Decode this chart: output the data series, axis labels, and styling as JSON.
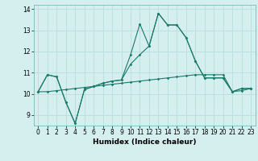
{
  "title": "",
  "xlabel": "Humidex (Indice chaleur)",
  "background_color": "#d5efef",
  "grid_color": "#b8dede",
  "line_color": "#1a7a6a",
  "xlim": [
    -0.5,
    23.5
  ],
  "ylim": [
    8.5,
    14.2
  ],
  "yticks": [
    9,
    10,
    11,
    12,
    13,
    14
  ],
  "xticks": [
    0,
    1,
    2,
    3,
    4,
    5,
    6,
    7,
    8,
    9,
    10,
    11,
    12,
    13,
    14,
    15,
    16,
    17,
    18,
    19,
    20,
    21,
    22,
    23
  ],
  "series1_x": [
    0,
    1,
    2,
    3,
    4,
    5,
    6,
    7,
    8,
    9,
    10,
    11,
    12,
    13,
    14,
    15,
    16,
    17,
    18,
    19,
    20,
    21,
    22,
    23
  ],
  "series1_y": [
    10.1,
    10.9,
    10.8,
    9.6,
    8.6,
    10.2,
    10.35,
    10.5,
    10.6,
    10.65,
    11.85,
    13.3,
    12.25,
    13.8,
    13.25,
    13.25,
    12.65,
    11.55,
    10.75,
    10.75,
    10.75,
    10.1,
    10.25,
    10.25
  ],
  "series2_x": [
    0,
    1,
    2,
    3,
    4,
    5,
    6,
    7,
    8,
    9,
    10,
    11,
    12,
    13,
    14,
    15,
    16,
    17,
    18,
    19,
    20,
    21,
    22,
    23
  ],
  "series2_y": [
    10.1,
    10.9,
    10.8,
    9.6,
    8.6,
    10.2,
    10.35,
    10.5,
    10.6,
    10.65,
    11.4,
    11.85,
    12.25,
    13.8,
    13.25,
    13.25,
    12.65,
    11.55,
    10.75,
    10.75,
    10.75,
    10.1,
    10.25,
    10.25
  ],
  "series3_x": [
    0,
    1,
    2,
    3,
    4,
    5,
    6,
    7,
    8,
    9,
    10,
    11,
    12,
    13,
    14,
    15,
    16,
    17,
    18,
    19,
    20,
    21,
    22,
    23
  ],
  "series3_y": [
    10.1,
    10.1,
    10.15,
    10.2,
    10.25,
    10.3,
    10.35,
    10.4,
    10.45,
    10.5,
    10.55,
    10.6,
    10.65,
    10.7,
    10.75,
    10.8,
    10.85,
    10.9,
    10.9,
    10.9,
    10.9,
    10.1,
    10.15,
    10.25
  ]
}
